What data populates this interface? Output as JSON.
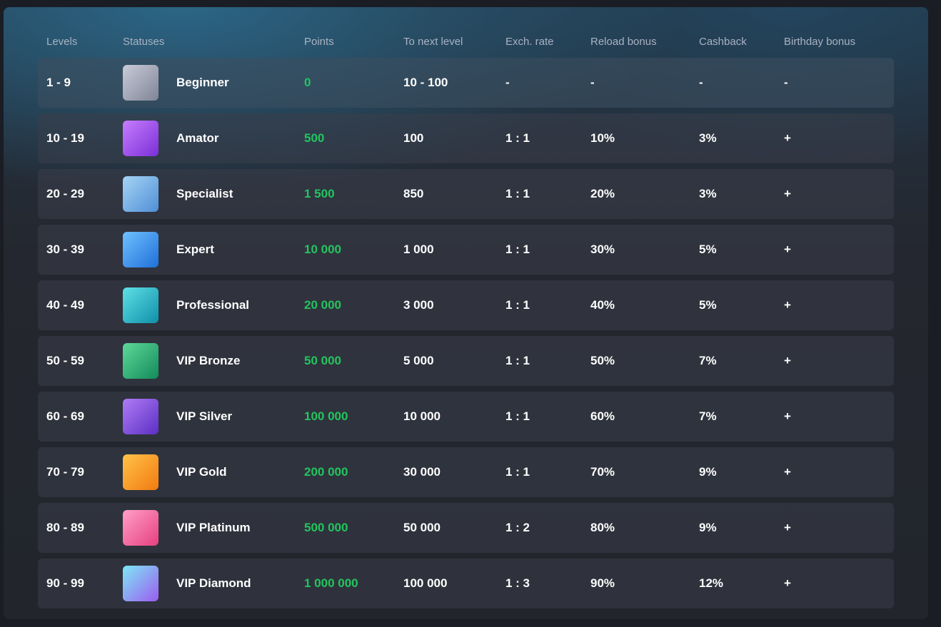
{
  "table": {
    "headers": [
      "Levels",
      "Statuses",
      "Points",
      "To next level",
      "Exch. rate",
      "Reload bonus",
      "Cashback",
      "Birthday bonus"
    ],
    "rows": [
      [
        "1 - 9",
        "Beginner",
        "0",
        "10 - 100",
        "-",
        "-",
        "-",
        "-"
      ],
      [
        "10 - 19",
        "Amator",
        "500",
        "100",
        "1 : 1",
        "10%",
        "3%",
        "+"
      ],
      [
        "20 - 29",
        "Specialist",
        "1 500",
        "850",
        "1 : 1",
        "20%",
        "3%",
        "+"
      ],
      [
        "30 - 39",
        "Expert",
        "10 000",
        "1 000",
        "1 : 1",
        "30%",
        "5%",
        "+"
      ],
      [
        "40 - 49",
        "Professional",
        "20 000",
        "3 000",
        "1 : 1",
        "40%",
        "5%",
        "+"
      ],
      [
        "50 - 59",
        "VIP Bronze",
        "50 000",
        "5 000",
        "1 : 1",
        "50%",
        "7%",
        "+"
      ],
      [
        "60 - 69",
        "VIP Silver",
        "100 000",
        "10 000",
        "1 : 1",
        "60%",
        "7%",
        "+"
      ],
      [
        "70 - 79",
        "VIP Gold",
        "200 000",
        "30 000",
        "1 : 1",
        "70%",
        "9%",
        "+"
      ],
      [
        "80 - 89",
        "VIP Platinum",
        "500 000",
        "50 000",
        "1 : 2",
        "80%",
        "9%",
        "+"
      ],
      [
        "90 - 99",
        "VIP Diamond",
        "1 000 000",
        "100 000",
        "1 : 3",
        "90%",
        "12%",
        "+"
      ]
    ]
  }
}
